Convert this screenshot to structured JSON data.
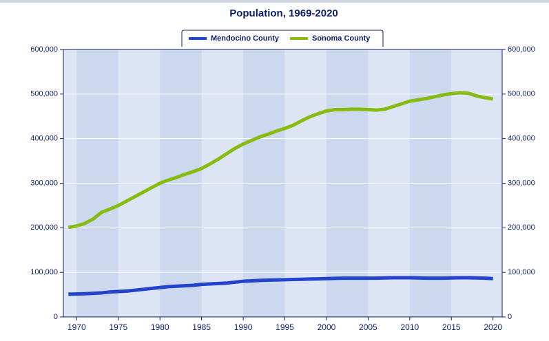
{
  "chart_data": {
    "type": "line",
    "title": "Population, 1969-2020",
    "x": [
      1969,
      1970,
      1971,
      1972,
      1973,
      1974,
      1975,
      1976,
      1977,
      1978,
      1979,
      1980,
      1981,
      1982,
      1983,
      1984,
      1985,
      1986,
      1987,
      1988,
      1989,
      1990,
      1991,
      1992,
      1993,
      1994,
      1995,
      1996,
      1997,
      1998,
      1999,
      2000,
      2001,
      2002,
      2003,
      2004,
      2005,
      2006,
      2007,
      2008,
      2009,
      2010,
      2011,
      2012,
      2013,
      2014,
      2015,
      2016,
      2017,
      2018,
      2019,
      2020
    ],
    "series": [
      {
        "name": "Mendocino County",
        "color": "#2244cc",
        "values": [
          51000,
          51500,
          52000,
          53000,
          54000,
          56000,
          57000,
          58000,
          60000,
          62000,
          64000,
          66000,
          68000,
          69000,
          70000,
          71000,
          73000,
          74000,
          75000,
          76000,
          78000,
          80000,
          81000,
          82000,
          82500,
          83000,
          83500,
          84000,
          84500,
          85000,
          85500,
          86000,
          86500,
          87000,
          87000,
          87000,
          87000,
          87000,
          87500,
          88000,
          88000,
          88000,
          87500,
          87000,
          87000,
          87000,
          87500,
          88000,
          88000,
          87500,
          87000,
          86000
        ]
      },
      {
        "name": "Sonoma County",
        "color": "#88bb11",
        "values": [
          201000,
          204000,
          210000,
          220000,
          235000,
          242000,
          250000,
          260000,
          270000,
          280000,
          290000,
          300000,
          307000,
          313000,
          320000,
          326000,
          333000,
          343000,
          354000,
          366000,
          378000,
          388000,
          396000,
          404000,
          410000,
          417000,
          423000,
          430000,
          440000,
          449000,
          456000,
          462000,
          465000,
          465000,
          466000,
          466000,
          465000,
          464000,
          466000,
          472000,
          478000,
          484000,
          487000,
          490000,
          494000,
          498000,
          501000,
          503000,
          502000,
          496000,
          492000,
          489000
        ]
      }
    ],
    "xlim": [
      1968.4,
      2021.1
    ],
    "xticks": [
      1970,
      1975,
      1980,
      1985,
      1990,
      1995,
      2000,
      2005,
      2010,
      2015,
      2020
    ],
    "ylim": [
      0,
      600000
    ],
    "yticks": [
      0,
      {
        "value": 100000,
        "label": "100,000"
      },
      {
        "value": 200000,
        "label": "200,000"
      },
      {
        "value": 300000,
        "label": "300,000"
      },
      {
        "value": 400000,
        "label": "400,000"
      },
      {
        "value": 500000,
        "label": "500,000"
      },
      {
        "value": 600000,
        "label": "600,000"
      }
    ],
    "grid": true,
    "legend": "top"
  }
}
